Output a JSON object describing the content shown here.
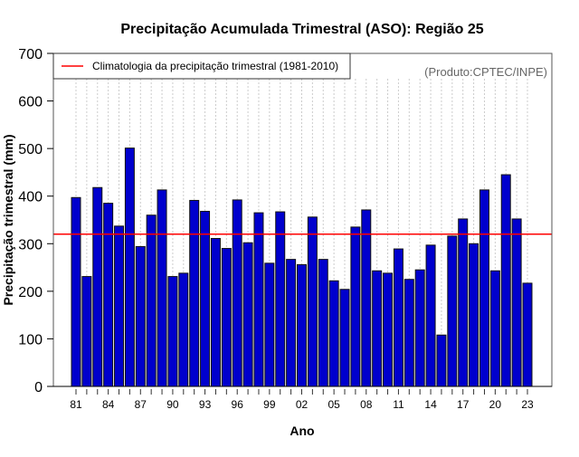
{
  "chart_data": {
    "type": "bar",
    "title": "Precipitação Acumulada Trimestral (ASO): Região 25",
    "xlabel": "Ano",
    "ylabel": "Precipitação trimestral (mm)",
    "ylim": [
      0,
      700
    ],
    "yticks": [
      0,
      100,
      200,
      300,
      400,
      500,
      600,
      700
    ],
    "source_note": "(Produto:CPTEC/INPE)",
    "categories": [
      1981,
      1982,
      1983,
      1984,
      1985,
      1986,
      1987,
      1988,
      1989,
      1990,
      1991,
      1992,
      1993,
      1994,
      1995,
      1996,
      1997,
      1998,
      1999,
      2000,
      2001,
      2002,
      2003,
      2004,
      2005,
      2006,
      2007,
      2008,
      2009,
      2010,
      2011,
      2012,
      2013,
      2014,
      2015,
      2016,
      2017,
      2018,
      2019,
      2020,
      2021,
      2022,
      2023
    ],
    "xtick_labels": [
      "81",
      "84",
      "87",
      "90",
      "93",
      "96",
      "99",
      "02",
      "05",
      "08",
      "11",
      "14",
      "17",
      "20",
      "23"
    ],
    "values": [
      397,
      231,
      418,
      385,
      337,
      501,
      294,
      360,
      413,
      231,
      238,
      391,
      368,
      311,
      290,
      392,
      302,
      365,
      259,
      367,
      267,
      256,
      356,
      267,
      222,
      204,
      335,
      371,
      243,
      238,
      289,
      225,
      245,
      297,
      108,
      316,
      352,
      300,
      413,
      243,
      445,
      352,
      217
    ],
    "bar_color": "#0000cd",
    "climatology": {
      "label": "Climatologia da precipitação trimestral (1981-2010)",
      "value": 320,
      "color": "#ff0000"
    },
    "legend_position": "top-left",
    "grid": "vertical dashed"
  }
}
